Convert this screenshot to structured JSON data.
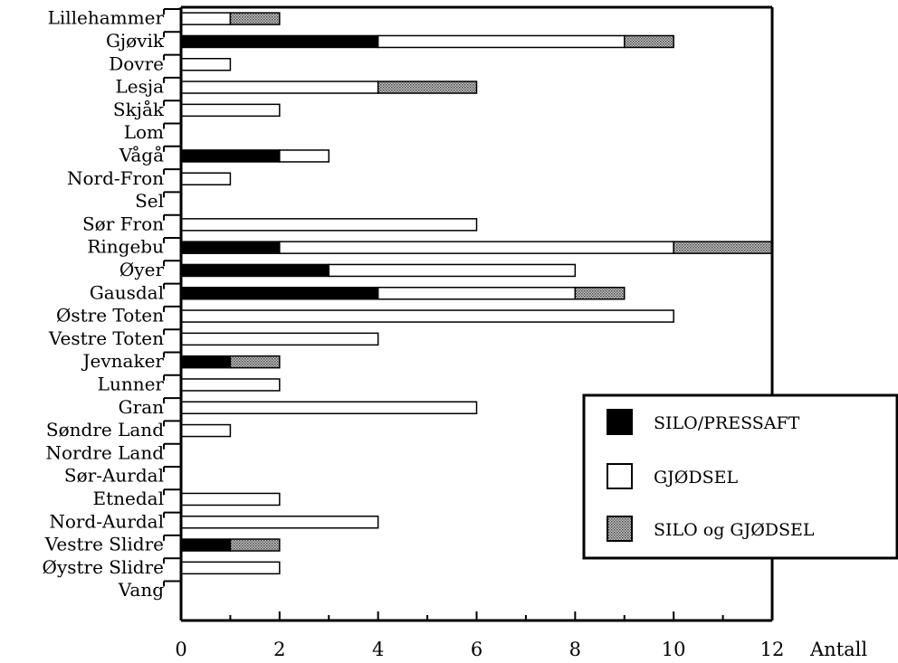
{
  "chart_data": {
    "type": "bar",
    "orientation": "horizontal",
    "stacked": true,
    "categories": [
      "Lillehammer",
      "Gjøvik",
      "Dovre",
      "Lesja",
      "Skjåk",
      "Lom",
      "Vågå",
      "Nord-Fron",
      "Sel",
      "Sør Fron",
      "Ringebu",
      "Øyer",
      "Gausdal",
      "Østre Toten",
      "Vestre Toten",
      "Jevnaker",
      "Lunner",
      "Gran",
      "Søndre Land",
      "Nordre Land",
      "Sør-Aurdal",
      "Etnedal",
      "Nord-Aurdal",
      "Vestre Slidre",
      "Øystre Slidre",
      "Vang"
    ],
    "series": [
      {
        "name": "SILO/PRESSAFT",
        "color": "#000000",
        "values": [
          0,
          4,
          0,
          0,
          0,
          0,
          2,
          0,
          0,
          0,
          2,
          3,
          4,
          0,
          0,
          1,
          0,
          0,
          0,
          0,
          0,
          0,
          0,
          1,
          0,
          0
        ]
      },
      {
        "name": "GJØDSEL",
        "color": "#ffffff",
        "values": [
          1,
          5,
          1,
          4,
          2,
          0,
          1,
          1,
          0,
          6,
          8,
          5,
          4,
          10,
          4,
          0,
          2,
          6,
          1,
          0,
          0,
          2,
          4,
          0,
          2,
          0
        ]
      },
      {
        "name": "SILO og GJØDSEL",
        "color": "#a0a0a0",
        "values": [
          1,
          1,
          0,
          2,
          0,
          0,
          0,
          0,
          0,
          0,
          2,
          0,
          1,
          0,
          0,
          1,
          0,
          0,
          0,
          0,
          0,
          0,
          0,
          1,
          0,
          0
        ]
      }
    ],
    "xlabel": "Antall",
    "ylabel": "",
    "xlim": [
      0,
      12
    ],
    "xticks": [
      0,
      2,
      4,
      6,
      8,
      10,
      12
    ],
    "grid": false,
    "legend_position": "lower-right"
  }
}
